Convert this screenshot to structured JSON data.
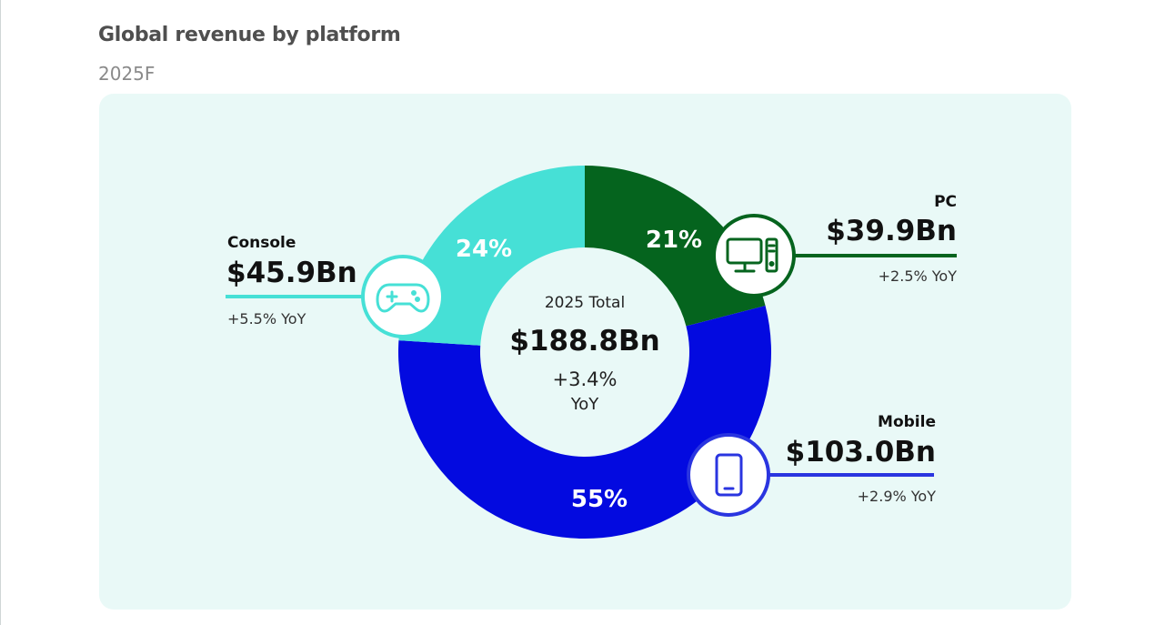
{
  "header": {
    "title": "Global revenue by platform",
    "subtitle": "2025F"
  },
  "chart_data": {
    "type": "pie",
    "title": "Global revenue by platform",
    "subtitle": "2025F",
    "unit": "$Bn",
    "center": {
      "label": "2025 Total",
      "value": "$188.8Bn",
      "yoy_line1": "+3.4%",
      "yoy_line2": "YoY"
    },
    "slices": [
      {
        "name": "PC",
        "percent": 21,
        "percent_label": "21%",
        "value": 39.9,
        "value_label": "$39.9Bn",
        "yoy": "+2.5% YoY",
        "color": "#05641e",
        "icon": "desktop-computer-icon"
      },
      {
        "name": "Mobile",
        "percent": 55,
        "percent_label": "55%",
        "value": 103.0,
        "value_label": "$103.0Bn",
        "yoy": "+2.9% YoY",
        "color": "#030ae0",
        "icon": "smartphone-icon"
      },
      {
        "name": "Console",
        "percent": 24,
        "percent_label": "24%",
        "value": 45.9,
        "value_label": "$45.9Bn",
        "yoy": "+5.5% YoY",
        "color": "#46e0d6",
        "icon": "gamepad-icon"
      }
    ]
  },
  "colors": {
    "panel_background": "#e9f9f7",
    "pc": "#05641e",
    "mobile": "#030ae0",
    "mobile_outline": "#2a35e0",
    "console": "#46e0d6",
    "title": "#4f4f4f",
    "subtitle": "#8a8a8a"
  }
}
